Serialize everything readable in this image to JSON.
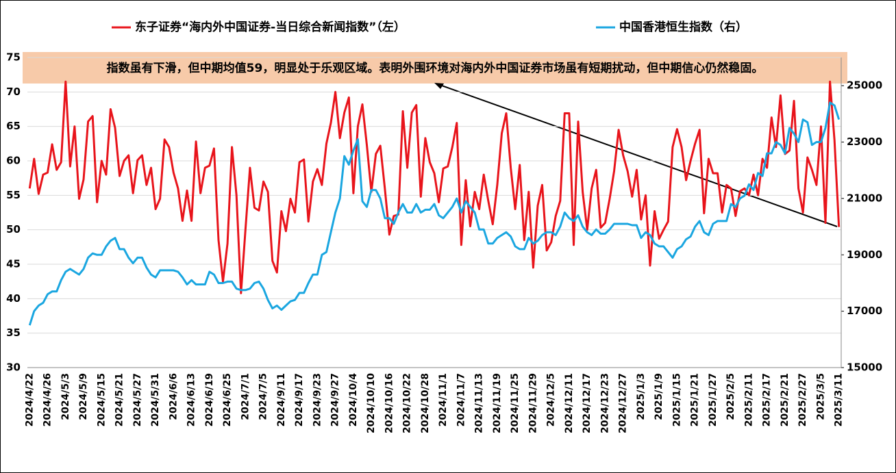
{
  "chart_data": {
    "type": "line",
    "annotation": "指数虽有下滑，但中期均值59，明显处于乐观区域。表明外围环境对海内外中国证券市场虽有短期扰动，但中期信心仍然稳固。",
    "categories": [
      "2024/4/22",
      null,
      null,
      null,
      "2024/4/26",
      null,
      null,
      null,
      "2024/5/3",
      null,
      null,
      null,
      "2024/5/9",
      null,
      null,
      null,
      "2024/5/15",
      null,
      null,
      null,
      "2024/5/21",
      null,
      null,
      null,
      "2024/5/27",
      null,
      null,
      null,
      "2024/5/31",
      null,
      null,
      null,
      "2024/6/6",
      null,
      null,
      null,
      "2024/6/13",
      null,
      null,
      null,
      "2024/6/19",
      null,
      null,
      null,
      "2024/6/25",
      null,
      null,
      null,
      "2024/7/1",
      null,
      null,
      null,
      "2024/7/5",
      null,
      null,
      null,
      "2024/9/11",
      null,
      null,
      null,
      "2024/9/17",
      null,
      null,
      null,
      "2024/9/23",
      null,
      null,
      null,
      "2024/9/27",
      null,
      null,
      null,
      "2024/10/4",
      null,
      null,
      null,
      "2024/10/10",
      null,
      null,
      null,
      "2024/10/16",
      null,
      null,
      null,
      "2024/10/22",
      null,
      null,
      null,
      "2024/10/28",
      null,
      null,
      null,
      "2024/11/1",
      null,
      null,
      null,
      "2024/11/7",
      null,
      null,
      null,
      "2024/11/13",
      null,
      null,
      null,
      "2024/11/19",
      null,
      null,
      null,
      "2024/11/25",
      null,
      null,
      null,
      "2024/11/29",
      null,
      null,
      null,
      "2024/12/5",
      null,
      null,
      null,
      "2024/12/11",
      null,
      null,
      null,
      "2024/12/17",
      null,
      null,
      null,
      "2024/12/23",
      null,
      null,
      null,
      "2024/12/27",
      null,
      null,
      null,
      "2025/1/3",
      null,
      null,
      null,
      "2025/1/9",
      null,
      null,
      null,
      "2025/1/15",
      null,
      null,
      null,
      "2025/1/21",
      null,
      null,
      null,
      "2025/1/27",
      null,
      null,
      null,
      "2025/2/5",
      null,
      null,
      null,
      "2025/2/11",
      null,
      null,
      null,
      "2025/2/17",
      null,
      null,
      null,
      "2025/2/21",
      null,
      null,
      null,
      "2025/2/27",
      null,
      null,
      null,
      "2025/3/5",
      null,
      null,
      null,
      "2025/3/11"
    ],
    "series": [
      {
        "name": "东子证券“海内外中国证券-当日综合新闻指数”（左）",
        "color": "#e8141b",
        "values": [
          56,
          60.3,
          55.2,
          58,
          58.3,
          62.4,
          58.7,
          59.8,
          71.5,
          59.2,
          65,
          54.5,
          57.3,
          65.7,
          66.5,
          54,
          60,
          58,
          67.5,
          64.8,
          57.8,
          60,
          60.8,
          55.3,
          60.1,
          60.8,
          56.5,
          59,
          53,
          54.5,
          63.1,
          62,
          58.3,
          56,
          51.3,
          55.7,
          51.3,
          62.8,
          55.3,
          59,
          59.3,
          61.8,
          48.5,
          42.5,
          48,
          62,
          55,
          40.8,
          50,
          59,
          53.2,
          52.8,
          57,
          55.5,
          45.5,
          43.8,
          52.7,
          49.8,
          54.5,
          52.5,
          59.8,
          60.2,
          51.2,
          57,
          58.8,
          56.5,
          62.5,
          65.5,
          70,
          63.3,
          67,
          69.2,
          55.3,
          65,
          68.2,
          62.3,
          55.5,
          61,
          62.2,
          56,
          49.3,
          52,
          52.2,
          67.2,
          59,
          67,
          68.1,
          54.8,
          63.3,
          59.8,
          58.2,
          54,
          58.9,
          59.2,
          62,
          65.5,
          47.8,
          57.2,
          50.5,
          55.5,
          53,
          58,
          54.2,
          50.8,
          56.5,
          64,
          66.9,
          59,
          53,
          59.4,
          48.5,
          55.5,
          44.5,
          53.5,
          56.5,
          47,
          48.2,
          52,
          54.2,
          66.9,
          66.9,
          47.8,
          65.7,
          55.5,
          50,
          56,
          58.7,
          50.3,
          51,
          54.5,
          58.5,
          64.5,
          60.8,
          58.5,
          54.8,
          58.7,
          51.5,
          55,
          44.8,
          52.7,
          48.7,
          50,
          51.2,
          62,
          64.6,
          62,
          57.2,
          60,
          62.5,
          64.5,
          52.4,
          60.3,
          58.2,
          58.2,
          52.5,
          56.5,
          56,
          52,
          55.6,
          56,
          55,
          58,
          55,
          60.3,
          59,
          66.3,
          62,
          69.5,
          61,
          61.5,
          68.7,
          56,
          52.5,
          60.5,
          58.7,
          56.5,
          65,
          51,
          71.5,
          63,
          50.4
        ]
      },
      {
        "name": "中国香港恒生指数（右）",
        "color": "#1aa6e0",
        "axis": "y2",
        "values": [
          16500,
          17000,
          17200,
          17300,
          17600,
          17700,
          17700,
          18100,
          18400,
          18500,
          18400,
          18300,
          18500,
          18900,
          19050,
          19000,
          19000,
          19300,
          19500,
          19600,
          19200,
          19200,
          18900,
          18700,
          18900,
          18900,
          18550,
          18300,
          18200,
          18450,
          18450,
          18450,
          18450,
          18400,
          18200,
          17950,
          18100,
          17950,
          17950,
          17950,
          18400,
          18300,
          18000,
          18000,
          18050,
          18050,
          17800,
          17750,
          17750,
          17800,
          18000,
          18050,
          17800,
          17400,
          17100,
          17200,
          17050,
          17200,
          17350,
          17400,
          17650,
          17650,
          18000,
          18300,
          18300,
          19000,
          19100,
          19800,
          20500,
          21000,
          22500,
          22200,
          22700,
          23100,
          20900,
          20700,
          21300,
          21300,
          21000,
          20300,
          20300,
          20100,
          20500,
          20800,
          20500,
          20500,
          20800,
          20500,
          20600,
          20600,
          20800,
          20400,
          20300,
          20500,
          20700,
          21000,
          20500,
          20900,
          20700,
          20500,
          19900,
          19900,
          19400,
          19400,
          19600,
          19700,
          19800,
          19650,
          19300,
          19200,
          19200,
          19600,
          19400,
          19500,
          19700,
          19800,
          19800,
          19700,
          20000,
          20500,
          20300,
          20200,
          20400,
          20000,
          19800,
          19700,
          19900,
          19750,
          19750,
          19900,
          20100,
          20100,
          20100,
          20100,
          20050,
          20050,
          19600,
          19800,
          19700,
          19400,
          19300,
          19300,
          19100,
          18900,
          19200,
          19300,
          19550,
          19650,
          20000,
          20200,
          19800,
          19700,
          20100,
          20200,
          20200,
          20200,
          20800,
          20700,
          21000,
          21100,
          21500,
          21300,
          21900,
          21800,
          22600,
          22600,
          23000,
          22900,
          22600,
          23500,
          23300,
          23000,
          23800,
          23700,
          22900,
          23000,
          23000,
          23500,
          24400,
          24300,
          23800
        ]
      }
    ],
    "ylim": [
      30,
      75
    ],
    "yticks": [
      30,
      35,
      40,
      45,
      50,
      55,
      60,
      65,
      70,
      75
    ],
    "y2lim": [
      15000,
      26000
    ],
    "y2ticks": [
      15000,
      17000,
      19000,
      21000,
      23000,
      25000
    ],
    "grid": true
  }
}
